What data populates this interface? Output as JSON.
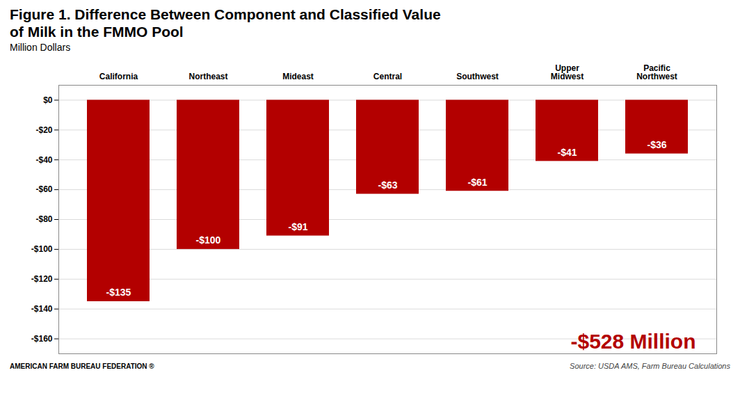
{
  "chart_data": {
    "type": "bar",
    "title": "Figure 1. Difference Between Component and Classified Value\nof Milk in the FMMO Pool",
    "subtitle": "Million Dollars",
    "categories": [
      "California",
      "Northeast",
      "Mideast",
      "Central",
      "Southwest",
      "Upper\nMidwest",
      "Pacific\nNorthwest"
    ],
    "values": [
      -135,
      -100,
      -91,
      -63,
      -61,
      -41,
      -36
    ],
    "value_labels": [
      "-$135",
      "-$100",
      "-$91",
      "-$63",
      "-$61",
      "-$41",
      "-$36"
    ],
    "data_labels": true,
    "color": "#B30000",
    "ylim": [
      -170,
      10
    ],
    "yticks": [
      {
        "value": 0,
        "label": "$0"
      },
      {
        "value": -20,
        "label": "-$20"
      },
      {
        "value": -40,
        "label": "-$40"
      },
      {
        "value": -60,
        "label": "-$60"
      },
      {
        "value": -80,
        "label": "-$80"
      },
      {
        "value": -100,
        "label": "-$100"
      },
      {
        "value": -120,
        "label": "-$120"
      },
      {
        "value": -140,
        "label": "-$140"
      },
      {
        "value": -160,
        "label": "-$160"
      }
    ],
    "grid": true,
    "annotations": [
      {
        "text": "-$528 Million",
        "color": "#B30000"
      },
      {
        "text": "AMERICAN FARM BUREAU FEDERATION"
      },
      {
        "text": "®"
      }
    ],
    "source": "Source: USDA AMS, Farm Bureau Calculations"
  }
}
